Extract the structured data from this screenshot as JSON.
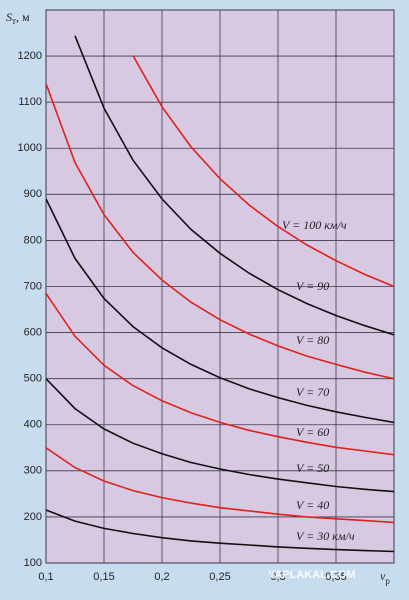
{
  "chart_data": {
    "type": "line",
    "ylabel": {
      "main": "S",
      "sub": "т",
      "unit": ", м"
    },
    "xlabel": {
      "main": "ν",
      "sub": "р"
    },
    "watermark": "YAPLAKAL.COM",
    "x": [
      0.1,
      0.125,
      0.15,
      0.175,
      0.2,
      0.225,
      0.25,
      0.275,
      0.3,
      0.325,
      0.35,
      0.375,
      0.4
    ],
    "xlim": [
      0.1,
      0.4
    ],
    "xticks": [
      {
        "value": 0.1,
        "label": "0,1"
      },
      {
        "value": 0.15,
        "label": "0,15"
      },
      {
        "value": 0.2,
        "label": "0,2"
      },
      {
        "value": 0.25,
        "label": "0,25"
      },
      {
        "value": 0.3,
        "label": "0,3"
      },
      {
        "value": 0.35,
        "label": "0,35"
      }
    ],
    "ylim": [
      100,
      1300
    ],
    "yticks": [
      100,
      200,
      300,
      400,
      500,
      600,
      700,
      800,
      900,
      1000,
      1100,
      1200
    ],
    "grid": true,
    "series": [
      {
        "name": "V = 100 км/ч",
        "color": "#e0201b",
        "values": [
          null,
          null,
          null,
          1201,
          1090,
          1003,
          934,
          877,
          830,
          790,
          756,
          726,
          700
        ]
      },
      {
        "name": "V = 90",
        "color": "#111111",
        "values": [
          null,
          1244,
          1087,
          974,
          890,
          824,
          772,
          729,
          693,
          663,
          637,
          615,
          595
        ]
      },
      {
        "name": "V = 80",
        "color": "#e0201b",
        "values": [
          1140,
          969,
          856,
          774,
          714,
          666,
          628,
          597,
          571,
          549,
          531,
          514,
          500
        ]
      },
      {
        "name": "V = 70",
        "color": "#111111",
        "values": [
          890,
          761,
          674,
          613,
          567,
          531,
          502,
          478,
          459,
          442,
          428,
          416,
          405
        ]
      },
      {
        "name": "V = 60",
        "color": "#e0201b",
        "values": [
          685,
          592,
          529,
          485,
          452,
          426,
          405,
          388,
          374,
          362,
          351,
          343,
          335
        ]
      },
      {
        "name": "V = 50",
        "color": "#111111",
        "values": [
          500,
          435,
          391,
          360,
          337,
          318,
          304,
          292,
          282,
          274,
          266,
          260,
          255
        ]
      },
      {
        "name": "V = 40",
        "color": "#e0201b",
        "values": [
          350,
          307,
          278,
          257,
          242,
          230,
          220,
          213,
          206,
          200,
          196,
          192,
          188
        ]
      },
      {
        "name": "V = 30 км/ч",
        "color": "#111111",
        "values": [
          215,
          191,
          175,
          164,
          155,
          148,
          143,
          139,
          135,
          132,
          129,
          127,
          125
        ]
      }
    ]
  }
}
